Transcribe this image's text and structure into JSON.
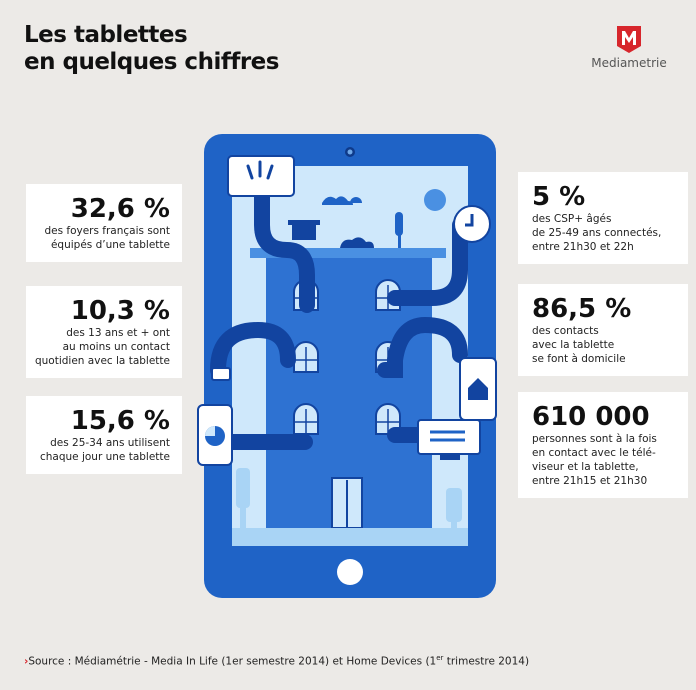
{
  "title": {
    "line1": "Les tablettes",
    "line2": "en quelques chiffres"
  },
  "brand": {
    "name": "Mediametrie",
    "logo_letter": "M"
  },
  "colors": {
    "accent": "#D7262C",
    "blue": "#1F63C6",
    "dark_blue": "#1244A0",
    "light_blue": "#A9D4F5",
    "sky": "#CFE8FB"
  },
  "stats_left": [
    {
      "value": "32,6 %",
      "desc": [
        "des foyers français sont",
        "équipés d’une tablette"
      ]
    },
    {
      "value": "10,3 %",
      "desc": [
        "des 13 ans et + ont",
        "au moins un contact",
        "quotidien avec la tablette"
      ]
    },
    {
      "value": "15,6 %",
      "desc": [
        "des 25-34 ans utilisent",
        "chaque jour une tablette"
      ]
    }
  ],
  "stats_right": [
    {
      "value": "5 %",
      "desc": [
        "des CSP+ âgés",
        "de 25-49 ans connectés,",
        "entre 21h30 et 22h"
      ]
    },
    {
      "value": "86,5 %",
      "desc": [
        "des contacts",
        "avec la tablette",
        "se font à domicile"
      ]
    },
    {
      "value": "610 000",
      "desc": [
        "personnes sont à la fois",
        "en contact avec le télé-",
        "viseur et la tablette,",
        "entre 21h15 et 21h30"
      ]
    }
  ],
  "source": {
    "prefix": "Source : Médiamétrie - Media In Life (1er semestre 2014) et Home Devices (1",
    "sup": "er",
    "suffix": " trimestre 2014)"
  },
  "icons": [
    "tablet-illustration",
    "building-illustration",
    "tv-icon",
    "clock-icon",
    "house-icon",
    "pie-chart-icon",
    "mediametrie-logo"
  ]
}
